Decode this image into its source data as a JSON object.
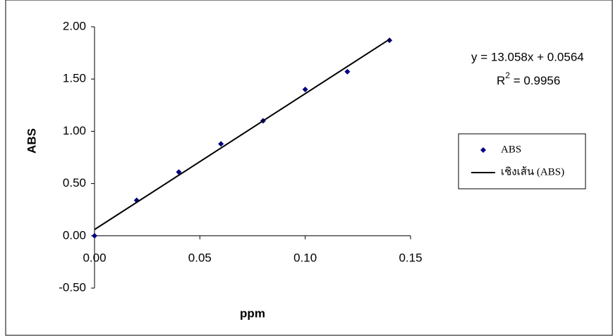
{
  "chart_data": {
    "type": "scatter",
    "x_label": "ppm",
    "y_label": "ABS",
    "series": [
      {
        "name": "ABS",
        "color": "#000080",
        "marker": "diamond",
        "x": [
          0,
          0.02,
          0.04,
          0.06,
          0.08,
          0.1,
          0.12,
          0.14
        ],
        "values": [
          0,
          0.34,
          0.61,
          0.88,
          1.1,
          1.4,
          1.57,
          1.87
        ]
      },
      {
        "name": "เชิงเส้น (ABS)",
        "color": "#000000",
        "marker": "line",
        "x": [
          0,
          0.14
        ],
        "values": [
          0.06,
          1.88
        ]
      }
    ],
    "equation": "y = 13.058x + 0.0564",
    "r_squared": {
      "base": "R",
      "sup": "2",
      "text": " = 0.9956"
    },
    "xlim": [
      0,
      0.15
    ],
    "xticks": [
      {
        "value": 0,
        "label": "0.00"
      },
      {
        "value": 0.05,
        "label": "0.05"
      },
      {
        "value": 0.1,
        "label": "0.10"
      },
      {
        "value": 0.15,
        "label": "0.15"
      }
    ],
    "ylim": [
      -0.5,
      2.0
    ],
    "yticks": [
      {
        "value": -0.5,
        "label": "-0.50"
      },
      {
        "value": 0,
        "label": "0.00"
      },
      {
        "value": 0.5,
        "label": "0.50"
      },
      {
        "value": 1.0,
        "label": "1.00"
      },
      {
        "value": 1.5,
        "label": "1.50"
      },
      {
        "value": 2.0,
        "label": "2.00"
      }
    ],
    "grid": false
  }
}
